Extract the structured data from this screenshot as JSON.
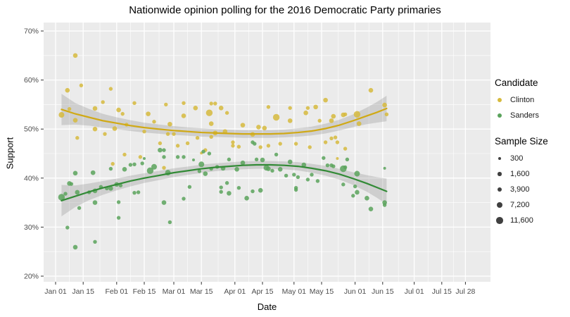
{
  "title": "Nationwide opinion polling for the 2016 Democratic Party primaries",
  "chart_data": {
    "type": "scatter",
    "title": "Nationwide opinion polling for the 2016 Democratic Party primaries",
    "xlabel": "Date",
    "ylabel": "Support",
    "x_tick_labels": [
      "Jan 01",
      "Jan 15",
      "Feb 01",
      "Feb 15",
      "Mar 01",
      "Mar 15",
      "Apr 01",
      "Apr 15",
      "May 01",
      "May 15",
      "Jun 01",
      "Jun 15",
      "Jul 01",
      "Jul 15",
      "Jul 28"
    ],
    "x_tick_days": [
      0,
      14,
      31,
      45,
      60,
      74,
      91,
      105,
      121,
      135,
      152,
      166,
      182,
      196,
      208
    ],
    "y_tick_labels": [
      "20%",
      "30%",
      "40%",
      "50%",
      "60%",
      "70%"
    ],
    "y_tick_values": [
      20,
      30,
      40,
      50,
      60,
      70
    ],
    "ylim": [
      20,
      70
    ],
    "grid": "on",
    "panel_bg": "#ebebeb",
    "grid_color": "#ffffff",
    "band_color": "rgba(120,120,120,0.25)",
    "tick_label_color": "#4d4d4d",
    "legend": {
      "candidate_title": "Candidate",
      "candidates": [
        {
          "name": "Clinton",
          "color": "#d6ba3d"
        },
        {
          "name": "Sanders",
          "color": "#5aa35c"
        }
      ],
      "size_title": "Sample Size",
      "sizes": [
        {
          "label": "300",
          "value": 300
        },
        {
          "label": "1,600",
          "value": 1600
        },
        {
          "label": "3,900",
          "value": 3900
        },
        {
          "label": "7,200",
          "value": 7200
        },
        {
          "label": "11,600",
          "value": 11600
        }
      ],
      "size_dot_color": "#404040"
    },
    "series": [
      {
        "name": "Clinton",
        "point_color": "#d6ba3d",
        "line_color": "#d0a915",
        "points": [
          [
            3,
            52.9,
            7200
          ],
          [
            6,
            57.9,
            3900
          ],
          [
            7,
            54.1,
            1600
          ],
          [
            10,
            65.0,
            3900
          ],
          [
            10,
            51.8,
            3900
          ],
          [
            11,
            48.2,
            1600
          ],
          [
            13,
            58.9,
            1600
          ],
          [
            20,
            54.2,
            3900
          ],
          [
            20,
            50.0,
            3900
          ],
          [
            24,
            55.5,
            1600
          ],
          [
            25,
            49.0,
            1600
          ],
          [
            28,
            58.2,
            1600
          ],
          [
            29,
            42.9,
            1600
          ],
          [
            30,
            50.1,
            3900
          ],
          [
            32,
            53.9,
            3900
          ],
          [
            34,
            53.1,
            1600
          ],
          [
            35,
            44.8,
            1600
          ],
          [
            36,
            50.9,
            1600
          ],
          [
            40,
            55.3,
            1600
          ],
          [
            43,
            44.3,
            1600
          ],
          [
            45,
            49.5,
            1600
          ],
          [
            47,
            53.1,
            3900
          ],
          [
            50,
            51.5,
            1600
          ],
          [
            53,
            47.1,
            1600
          ],
          [
            55,
            42.1,
            1600
          ],
          [
            56,
            55.0,
            1600
          ],
          [
            57,
            49.0,
            1600
          ],
          [
            58,
            51.0,
            3900
          ],
          [
            60,
            49.0,
            1600
          ],
          [
            62,
            46.6,
            1600
          ],
          [
            65,
            55.3,
            1600
          ],
          [
            65,
            52.7,
            3900
          ],
          [
            67,
            47.1,
            1600
          ],
          [
            71,
            54.3,
            3900
          ],
          [
            72,
            48.2,
            1600
          ],
          [
            74,
            45.1,
            300
          ],
          [
            76,
            45.7,
            1600
          ],
          [
            78,
            53.3,
            11600
          ],
          [
            79,
            55.2,
            1600
          ],
          [
            79,
            51.1,
            3900
          ],
          [
            79,
            48.4,
            1600
          ],
          [
            81,
            55.2,
            1600
          ],
          [
            81,
            49.2,
            3900
          ],
          [
            84,
            54.3,
            3900
          ],
          [
            86,
            49.5,
            3900
          ],
          [
            87,
            53.3,
            1600
          ],
          [
            90,
            47.3,
            1600
          ],
          [
            90,
            46.6,
            1600
          ],
          [
            93,
            46.4,
            1600
          ],
          [
            95,
            50.8,
            3900
          ],
          [
            100,
            48.9,
            3900
          ],
          [
            103,
            50.4,
            3900
          ],
          [
            104,
            46.3,
            1600
          ],
          [
            106,
            50.2,
            3900
          ],
          [
            108,
            54.5,
            1600
          ],
          [
            108,
            46.6,
            1600
          ],
          [
            112,
            52.4,
            11600
          ],
          [
            114,
            47.0,
            1600
          ],
          [
            119,
            54.3,
            1600
          ],
          [
            119,
            51.7,
            3900
          ],
          [
            122,
            47.0,
            1600
          ],
          [
            127,
            53.3,
            3900
          ],
          [
            128,
            54.3,
            1600
          ],
          [
            129,
            46.3,
            1600
          ],
          [
            132,
            54.5,
            3900
          ],
          [
            134,
            51.7,
            1600
          ],
          [
            137,
            55.9,
            3900
          ],
          [
            137,
            47.3,
            1600
          ],
          [
            140,
            51.7,
            3900
          ],
          [
            140,
            48.1,
            1600
          ],
          [
            141,
            52.6,
            3900
          ],
          [
            142,
            48.3,
            1600
          ],
          [
            143,
            47.3,
            1600
          ],
          [
            143,
            44.0,
            300
          ],
          [
            146,
            52.9,
            3900
          ],
          [
            147,
            53.0,
            1600
          ],
          [
            147,
            46.0,
            1600
          ],
          [
            153,
            53.0,
            11600
          ],
          [
            154,
            51.1,
            3900
          ],
          [
            160,
            57.9,
            3900
          ],
          [
            167,
            54.9,
            3900
          ],
          [
            168,
            53.0,
            1600
          ]
        ],
        "trend": [
          [
            3,
            54.0,
            3.2
          ],
          [
            10,
            53.1,
            2.2
          ],
          [
            17,
            52.4,
            1.7
          ],
          [
            24,
            51.7,
            1.4
          ],
          [
            31,
            51.2,
            1.2
          ],
          [
            38,
            50.7,
            1.1
          ],
          [
            45,
            50.3,
            1.0
          ],
          [
            52,
            50.0,
            0.95
          ],
          [
            60,
            49.7,
            0.9
          ],
          [
            67,
            49.5,
            0.85
          ],
          [
            74,
            49.3,
            0.85
          ],
          [
            81,
            49.2,
            0.8
          ],
          [
            88,
            49.1,
            0.8
          ],
          [
            95,
            49.0,
            0.8
          ],
          [
            102,
            49.0,
            0.8
          ],
          [
            109,
            49.0,
            0.8
          ],
          [
            116,
            49.1,
            0.8
          ],
          [
            123,
            49.3,
            0.85
          ],
          [
            130,
            49.6,
            0.9
          ],
          [
            137,
            50.1,
            1.0
          ],
          [
            144,
            50.8,
            1.1
          ],
          [
            151,
            51.7,
            1.3
          ],
          [
            158,
            52.7,
            1.7
          ],
          [
            163,
            53.4,
            2.1
          ],
          [
            168,
            54.2,
            2.6
          ]
        ]
      },
      {
        "name": "Sanders",
        "point_color": "#5aa35c",
        "line_color": "#328a36",
        "points": [
          [
            3,
            36.1,
            11600
          ],
          [
            5,
            36.8,
            1600
          ],
          [
            6,
            29.9,
            1600
          ],
          [
            7,
            38.9,
            3900
          ],
          [
            8,
            38.8,
            1600
          ],
          [
            10,
            41.0,
            3900
          ],
          [
            10,
            25.9,
            3900
          ],
          [
            11,
            37.1,
            3900
          ],
          [
            12,
            33.9,
            1600
          ],
          [
            17,
            37.1,
            1600
          ],
          [
            19,
            41.1,
            3900
          ],
          [
            20,
            37.4,
            3900
          ],
          [
            20,
            35.0,
            3900
          ],
          [
            20,
            27.0,
            1600
          ],
          [
            23,
            38.2,
            1600
          ],
          [
            26,
            37.9,
            1600
          ],
          [
            28,
            41.9,
            1600
          ],
          [
            28,
            37.9,
            3900
          ],
          [
            31,
            38.7,
            3900
          ],
          [
            32,
            35.1,
            1600
          ],
          [
            32,
            31.9,
            1600
          ],
          [
            33,
            38.5,
            1600
          ],
          [
            35,
            41.8,
            3900
          ],
          [
            38,
            42.7,
            1600
          ],
          [
            40,
            42.8,
            1600
          ],
          [
            40,
            37.0,
            1600
          ],
          [
            42,
            37.1,
            1600
          ],
          [
            44,
            43.0,
            1600
          ],
          [
            45,
            44.0,
            300
          ],
          [
            48,
            41.5,
            11600
          ],
          [
            50,
            42.3,
            7200
          ],
          [
            53,
            45.7,
            3900
          ],
          [
            55,
            45.7,
            1600
          ],
          [
            55,
            44.3,
            1600
          ],
          [
            55,
            35.0,
            3900
          ],
          [
            57,
            41.1,
            7200
          ],
          [
            58,
            31.0,
            1600
          ],
          [
            62,
            44.3,
            1600
          ],
          [
            65,
            44.3,
            1600
          ],
          [
            65,
            35.8,
            1600
          ],
          [
            68,
            38.2,
            1600
          ],
          [
            70,
            43.7,
            300
          ],
          [
            73,
            41.4,
            1600
          ],
          [
            74,
            42.8,
            7200
          ],
          [
            75,
            45.4,
            1600
          ],
          [
            76,
            40.9,
            3900
          ],
          [
            78,
            45.0,
            1600
          ],
          [
            79,
            41.9,
            1600
          ],
          [
            82,
            42.3,
            1600
          ],
          [
            84,
            38.1,
            1600
          ],
          [
            84,
            37.2,
            1600
          ],
          [
            85,
            42.0,
            3900
          ],
          [
            87,
            39.0,
            1600
          ],
          [
            88,
            43.8,
            1600
          ],
          [
            88,
            36.9,
            3900
          ],
          [
            92,
            41.8,
            3900
          ],
          [
            93,
            38.0,
            1600
          ],
          [
            95,
            43.1,
            3900
          ],
          [
            97,
            35.9,
            3900
          ],
          [
            100,
            47.3,
            1600
          ],
          [
            100,
            37.3,
            1600
          ],
          [
            101,
            47.0,
            1600
          ],
          [
            102,
            43.8,
            1600
          ],
          [
            104,
            37.5,
            3900
          ],
          [
            105,
            43.7,
            3900
          ],
          [
            107,
            42.1,
            7200
          ],
          [
            108,
            41.9,
            3900
          ],
          [
            110,
            41.5,
            1600
          ],
          [
            112,
            44.8,
            1600
          ],
          [
            114,
            41.8,
            3900
          ],
          [
            117,
            40.5,
            1600
          ],
          [
            119,
            43.3,
            3900
          ],
          [
            121,
            40.7,
            1600
          ],
          [
            122,
            38.0,
            1600
          ],
          [
            122,
            37.6,
            1600
          ],
          [
            123,
            40.2,
            1600
          ],
          [
            126,
            42.7,
            3900
          ],
          [
            128,
            39.7,
            1600
          ],
          [
            130,
            40.7,
            1600
          ],
          [
            133,
            39.4,
            1600
          ],
          [
            136,
            44.1,
            1600
          ],
          [
            138,
            42.6,
            1600
          ],
          [
            140,
            42.6,
            1600
          ],
          [
            141,
            42.4,
            1600
          ],
          [
            146,
            41.9,
            11600
          ],
          [
            146,
            38.7,
            1600
          ],
          [
            147,
            42.2,
            1600
          ],
          [
            148,
            43.8,
            1600
          ],
          [
            151,
            36.4,
            1600
          ],
          [
            152,
            38.3,
            1600
          ],
          [
            153,
            40.9,
            7200
          ],
          [
            153,
            37.1,
            3900
          ],
          [
            158,
            35.9,
            3900
          ],
          [
            160,
            33.7,
            3900
          ],
          [
            167,
            42.0,
            300
          ],
          [
            167,
            35.0,
            3900
          ],
          [
            167,
            34.5,
            1600
          ]
        ],
        "trend": [
          [
            3,
            35.4,
            3.2
          ],
          [
            10,
            36.3,
            2.2
          ],
          [
            17,
            37.2,
            1.7
          ],
          [
            24,
            38.0,
            1.4
          ],
          [
            31,
            38.7,
            1.2
          ],
          [
            38,
            39.4,
            1.1
          ],
          [
            45,
            40.0,
            1.0
          ],
          [
            52,
            40.5,
            0.95
          ],
          [
            60,
            41.1,
            0.9
          ],
          [
            67,
            41.5,
            0.85
          ],
          [
            74,
            41.9,
            0.85
          ],
          [
            81,
            42.2,
            0.8
          ],
          [
            88,
            42.4,
            0.8
          ],
          [
            95,
            42.6,
            0.8
          ],
          [
            102,
            42.7,
            0.8
          ],
          [
            109,
            42.7,
            0.8
          ],
          [
            116,
            42.6,
            0.8
          ],
          [
            123,
            42.4,
            0.85
          ],
          [
            130,
            42.0,
            0.9
          ],
          [
            137,
            41.5,
            1.0
          ],
          [
            144,
            40.8,
            1.1
          ],
          [
            151,
            39.9,
            1.3
          ],
          [
            158,
            38.9,
            1.7
          ],
          [
            163,
            38.1,
            2.1
          ],
          [
            168,
            37.3,
            2.6
          ]
        ]
      }
    ]
  }
}
